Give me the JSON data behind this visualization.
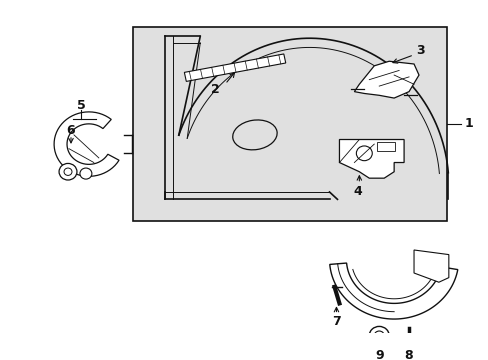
{
  "background_color": "#ffffff",
  "panel_color": "#e0e0e0",
  "line_color": "#111111",
  "figsize": [
    4.89,
    3.6
  ],
  "dpi": 100
}
